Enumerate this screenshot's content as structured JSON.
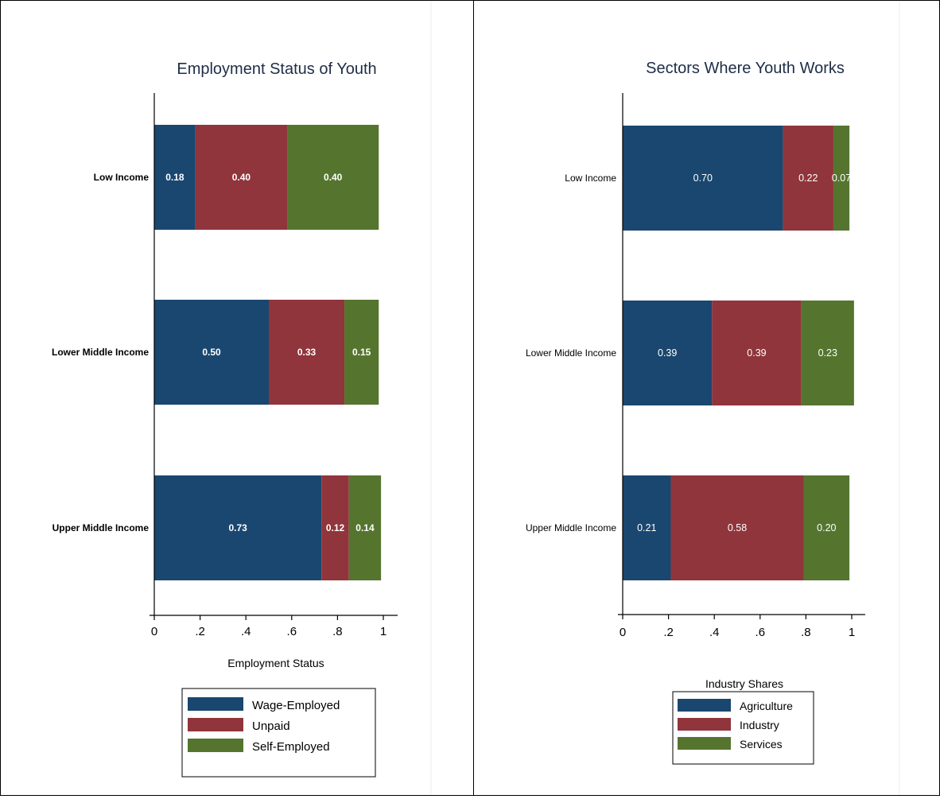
{
  "chart_data": [
    {
      "type": "bar",
      "orientation": "horizontal",
      "stacked": true,
      "title": "Employment Status of Youth",
      "xlabel": "Employment Status",
      "ylabel": "",
      "xlim": [
        0,
        1
      ],
      "xticks": [
        0,
        0.2,
        0.4,
        0.6,
        0.8,
        1
      ],
      "xtick_labels": [
        "0",
        ".2",
        ".4",
        ".6",
        ".8",
        "1"
      ],
      "categories": [
        "Low Income",
        "Lower Middle Income",
        "Upper Middle Income"
      ],
      "series": [
        {
          "name": "Wage-Employed",
          "values": [
            0.18,
            0.5,
            0.73
          ],
          "labels": [
            "0.18",
            "0.50",
            "0.73"
          ],
          "color": "#1a476f"
        },
        {
          "name": "Unpaid",
          "values": [
            0.4,
            0.33,
            0.12
          ],
          "labels": [
            "0.40",
            "0.33",
            "0.12"
          ],
          "color": "#90353b"
        },
        {
          "name": "Self-Employed",
          "values": [
            0.4,
            0.15,
            0.14
          ],
          "labels": [
            "0.40",
            "0.15",
            "0.14"
          ],
          "color": "#55752f"
        }
      ],
      "legend": "bottom",
      "grid": false
    },
    {
      "type": "bar",
      "orientation": "horizontal",
      "stacked": true,
      "title": "Sectors Where Youth Works",
      "xlabel": "Industry Shares",
      "ylabel": "",
      "xlim": [
        0,
        1
      ],
      "xticks": [
        0,
        0.2,
        0.4,
        0.6,
        0.8,
        1
      ],
      "xtick_labels": [
        "0",
        ".2",
        ".4",
        ".6",
        ".8",
        "1"
      ],
      "categories": [
        "Low Income",
        "Lower Middle Income",
        "Upper Middle Income"
      ],
      "series": [
        {
          "name": "Agriculture",
          "values": [
            0.7,
            0.39,
            0.21
          ],
          "labels": [
            "0.70",
            "0.39",
            "0.21"
          ],
          "color": "#1a476f"
        },
        {
          "name": "Industry",
          "values": [
            0.22,
            0.39,
            0.58
          ],
          "labels": [
            "0.22",
            "0.39",
            "0.58"
          ],
          "color": "#90353b"
        },
        {
          "name": "Services",
          "values": [
            0.07,
            0.23,
            0.2
          ],
          "labels": [
            "0.07",
            "0.23",
            "0.20"
          ],
          "color": "#55752f"
        }
      ],
      "legend": "bottom",
      "grid": false
    }
  ]
}
